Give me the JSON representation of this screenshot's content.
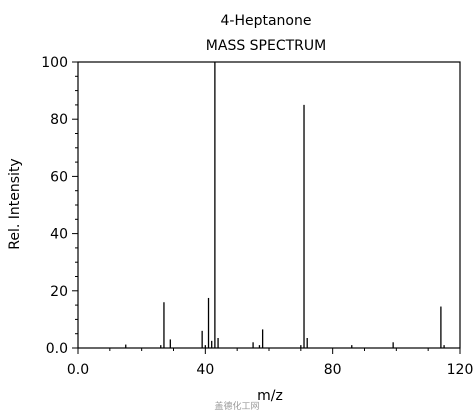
{
  "chart_data": {
    "type": "bar",
    "title": "4-Heptanone",
    "subtitle": "MASS SPECTRUM",
    "xlabel": "m/z",
    "ylabel": "Rel. Intensity",
    "xlim": [
      0,
      120
    ],
    "ylim": [
      0,
      100
    ],
    "x_ticks": [
      "0.0",
      "40",
      "80",
      "120"
    ],
    "y_ticks": [
      "0.0",
      "20",
      "40",
      "60",
      "80",
      "100"
    ],
    "grid": false,
    "peaks": [
      {
        "x": 15,
        "y": 1.2
      },
      {
        "x": 26,
        "y": 1.0
      },
      {
        "x": 27,
        "y": 16.0
      },
      {
        "x": 29,
        "y": 3.0
      },
      {
        "x": 39,
        "y": 6.0
      },
      {
        "x": 40,
        "y": 1.0
      },
      {
        "x": 41,
        "y": 17.5
      },
      {
        "x": 42,
        "y": 2.5
      },
      {
        "x": 43,
        "y": 100.0
      },
      {
        "x": 44,
        "y": 3.5
      },
      {
        "x": 55,
        "y": 2.0
      },
      {
        "x": 57,
        "y": 1.0
      },
      {
        "x": 58,
        "y": 6.5
      },
      {
        "x": 70,
        "y": 1.0
      },
      {
        "x": 71,
        "y": 85.0
      },
      {
        "x": 72,
        "y": 3.5
      },
      {
        "x": 86,
        "y": 1.0
      },
      {
        "x": 99,
        "y": 2.0
      },
      {
        "x": 114,
        "y": 14.5
      },
      {
        "x": 115,
        "y": 1.0
      }
    ]
  },
  "watermark_text": "盖德化工网",
  "colors": {
    "axis": "#000000",
    "peak": "#000000",
    "watermark": "#9a9a9a"
  }
}
